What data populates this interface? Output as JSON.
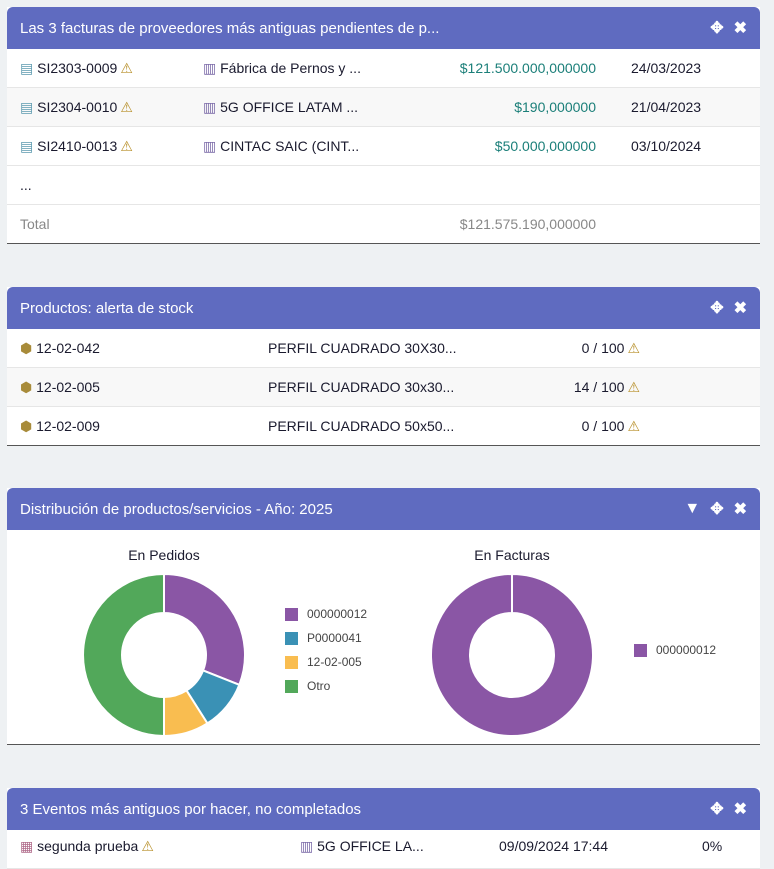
{
  "invoices": {
    "title": "Las 3 facturas de proveedores más antiguas pendientes de p...",
    "rows": [
      {
        "ref": "SI2303-0009",
        "supplier": "Fábrica de Pernos y ...",
        "amount": "$121.500.000,000000",
        "date": "24/03/2023"
      },
      {
        "ref": "SI2304-0010",
        "supplier": "5G OFFICE LATAM ...",
        "amount": "$190,000000",
        "date": "21/04/2023"
      },
      {
        "ref": "SI2410-0013",
        "supplier": "CINTAC SAIC (CINT...",
        "amount": "$50.000,000000",
        "date": "03/10/2024"
      }
    ],
    "more": "...",
    "total_label": "Total",
    "total": "$121.575.190,000000"
  },
  "stock": {
    "title": "Productos: alerta de stock",
    "rows": [
      {
        "ref": "12-02-042",
        "label": "PERFIL CUADRADO 30X30...",
        "qty": "0 / 100"
      },
      {
        "ref": "12-02-005",
        "label": "PERFIL CUADRADO 30x30...",
        "qty": "14 / 100"
      },
      {
        "ref": "12-02-009",
        "label": "PERFIL CUADRADO 50x50...",
        "qty": "0 / 100"
      }
    ]
  },
  "dist": {
    "title": "Distribución de productos/servicios - Año: 2025"
  },
  "chart_data": [
    {
      "type": "pie",
      "title": "En Pedidos",
      "categories": [
        "000000012",
        "P0000041",
        "12-02-005",
        "Otro"
      ],
      "values": [
        31,
        10,
        9,
        50
      ],
      "colors": [
        "#8a56a5",
        "#3a91b5",
        "#f9bd50",
        "#52a85a"
      ],
      "legend": "right"
    },
    {
      "type": "pie",
      "title": "En Facturas",
      "categories": [
        "000000012"
      ],
      "values": [
        100
      ],
      "colors": [
        "#8a56a5"
      ],
      "legend": "right"
    }
  ],
  "events": {
    "title": "3 Eventos más antiguos por hacer, no completados",
    "rows": [
      {
        "label": "segunda prueba",
        "company": "5G OFFICE LA...",
        "date": "09/09/2024 17:44",
        "progress": "0%"
      }
    ]
  },
  "icons": {
    "move": "✥",
    "close": "✖",
    "filter": "▼",
    "warn": "⚠"
  }
}
